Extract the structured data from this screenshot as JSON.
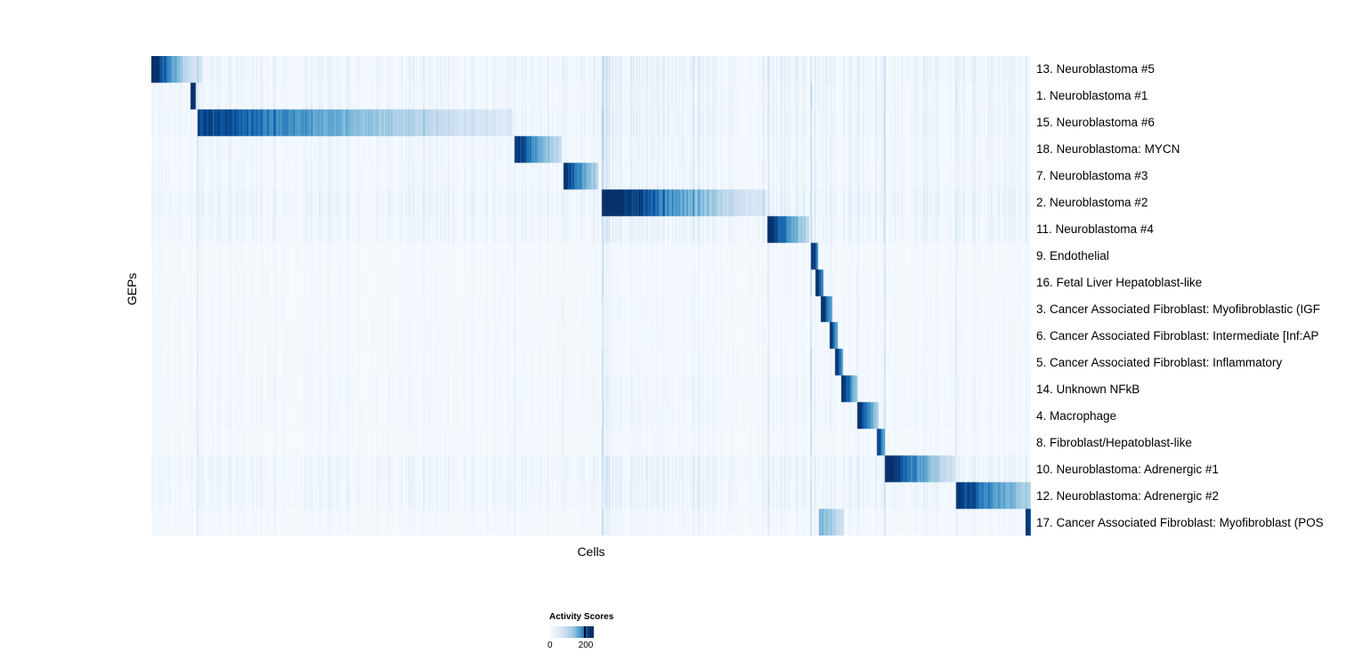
{
  "chart_data": {
    "type": "heatmap",
    "title": "",
    "xlabel": "Cells",
    "ylabel": "GEPs",
    "colorbar": {
      "title": "Activity Scores",
      "min": 0,
      "max": 200,
      "tick_labels": [
        "0",
        "200"
      ],
      "colormap": "Blues",
      "colors": [
        "#f7fbff",
        "#deebf7",
        "#c6dbef",
        "#9ecae1",
        "#6baed6",
        "#4292c6",
        "#2171b5",
        "#08519c",
        "#08306b"
      ]
    },
    "n_cols": 988,
    "rows": [
      {
        "label": "13. Neuroblastoma #5",
        "noise": 0.6,
        "blocks": [
          {
            "start": 0.0,
            "end": 0.057,
            "peak": 240,
            "tail": 25,
            "gamma": 1.8
          }
        ]
      },
      {
        "label": "1. Neuroblastoma #1",
        "noise": 0.5,
        "blocks": [
          {
            "start": 0.044,
            "end": 0.05,
            "peak": 215,
            "tail": 170,
            "gamma": 1.0
          }
        ]
      },
      {
        "label": "15. Neuroblastoma #6",
        "noise": 0.55,
        "blocks": [
          {
            "start": 0.052,
            "end": 0.41,
            "peak": 185,
            "tail": 20,
            "gamma": 1.4
          }
        ]
      },
      {
        "label": "18. Neuroblastoma: MYCN",
        "noise": 0.45,
        "blocks": [
          {
            "start": 0.412,
            "end": 0.466,
            "peak": 210,
            "tail": 45,
            "gamma": 1.5
          }
        ]
      },
      {
        "label": "7. Neuroblastoma #3",
        "noise": 0.45,
        "blocks": [
          {
            "start": 0.468,
            "end": 0.508,
            "peak": 215,
            "tail": 55,
            "gamma": 1.4
          }
        ]
      },
      {
        "label": "2. Neuroblastoma #2",
        "noise": 0.65,
        "blocks": [
          {
            "start": 0.512,
            "end": 0.698,
            "peak": 240,
            "tail": 25,
            "gamma": 1.6
          }
        ]
      },
      {
        "label": "11. Neuroblastoma #4",
        "noise": 0.5,
        "blocks": [
          {
            "start": 0.7,
            "end": 0.747,
            "peak": 225,
            "tail": 50,
            "gamma": 1.4
          }
        ]
      },
      {
        "label": "9. Endothelial",
        "noise": 0.18,
        "blocks": [
          {
            "start": 0.749,
            "end": 0.758,
            "peak": 220,
            "tail": 120,
            "gamma": 1.0
          }
        ]
      },
      {
        "label": "16. Fetal Liver Hepatoblast-like",
        "noise": 0.18,
        "blocks": [
          {
            "start": 0.755,
            "end": 0.764,
            "peak": 215,
            "tail": 110,
            "gamma": 1.0
          }
        ]
      },
      {
        "label": "3. Cancer Associated Fibroblast: Myofibroblastic (IGF",
        "noise": 0.2,
        "blocks": [
          {
            "start": 0.761,
            "end": 0.774,
            "peak": 220,
            "tail": 90,
            "gamma": 1.0
          }
        ]
      },
      {
        "label": "6. Cancer Associated Fibroblast: Intermediate [Inf:AP",
        "noise": 0.2,
        "blocks": [
          {
            "start": 0.771,
            "end": 0.78,
            "peak": 210,
            "tail": 100,
            "gamma": 1.0
          }
        ]
      },
      {
        "label": "5. Cancer Associated Fibroblast: Inflammatory",
        "noise": 0.2,
        "blocks": [
          {
            "start": 0.777,
            "end": 0.786,
            "peak": 215,
            "tail": 100,
            "gamma": 1.0
          }
        ]
      },
      {
        "label": "14. Unknown NFkB",
        "noise": 0.3,
        "blocks": [
          {
            "start": 0.784,
            "end": 0.802,
            "peak": 220,
            "tail": 70,
            "gamma": 1.2
          }
        ]
      },
      {
        "label": "4. Macrophage",
        "noise": 0.3,
        "blocks": [
          {
            "start": 0.802,
            "end": 0.826,
            "peak": 225,
            "tail": 60,
            "gamma": 1.2
          }
        ]
      },
      {
        "label": "8. Fibroblast/Hepatoblast-like",
        "noise": 0.2,
        "blocks": [
          {
            "start": 0.824,
            "end": 0.833,
            "peak": 210,
            "tail": 90,
            "gamma": 1.0
          }
        ]
      },
      {
        "label": "10. Neuroblastoma: Adrenergic #1",
        "noise": 0.55,
        "blocks": [
          {
            "start": 0.833,
            "end": 0.913,
            "peak": 240,
            "tail": 35,
            "gamma": 1.5
          }
        ]
      },
      {
        "label": "12. Neuroblastoma: Adrenergic #2",
        "noise": 0.5,
        "blocks": [
          {
            "start": 0.914,
            "end": 1.0,
            "peak": 195,
            "tail": 55,
            "gamma": 1.2
          }
        ]
      },
      {
        "label": "17. Cancer Associated Fibroblast: Myofibroblast (POS",
        "noise": 0.25,
        "blocks": [
          {
            "start": 0.759,
            "end": 0.787,
            "peak": 95,
            "tail": 30,
            "gamma": 1.0
          },
          {
            "start": 0.993,
            "end": 1.0,
            "peak": 215,
            "tail": 150,
            "gamma": 1.0
          }
        ]
      }
    ],
    "bands": [
      {
        "start": 0.512,
        "end": 0.625,
        "amp": 1.6
      },
      {
        "start": 0.7,
        "end": 0.77,
        "amp": 1.4
      },
      {
        "start": 0.835,
        "end": 1.0,
        "amp": 1.15
      }
    ],
    "streak_lines": [
      {
        "pos": 0.053,
        "amp": 22
      },
      {
        "pos": 0.413,
        "amp": 12
      },
      {
        "pos": 0.468,
        "amp": 10
      },
      {
        "pos": 0.513,
        "amp": 55
      },
      {
        "pos": 0.701,
        "amp": 22
      },
      {
        "pos": 0.75,
        "amp": 45
      },
      {
        "pos": 0.772,
        "amp": 12
      },
      {
        "pos": 0.803,
        "amp": 12
      },
      {
        "pos": 0.834,
        "amp": 28
      },
      {
        "pos": 0.915,
        "amp": 22
      }
    ]
  }
}
